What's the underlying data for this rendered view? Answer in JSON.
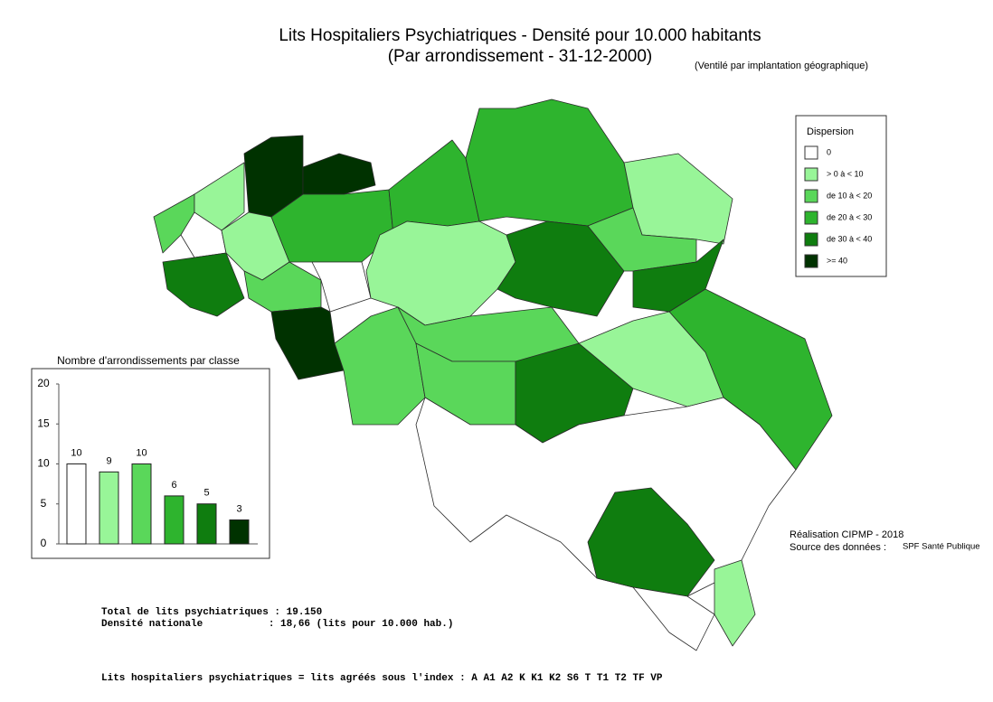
{
  "title": "Lits Hospitaliers Psychiatriques  - Densité pour 10.000 habitants",
  "subtitle": "(Par arrondissement - 31-12-2000)",
  "note": "(Ventilé par implantation géographique)",
  "legend": {
    "title": "Dispersion",
    "items": [
      {
        "label": "0",
        "color": "#ffffff"
      },
      {
        "label": "> 0 à < 10",
        "color": "#98f598"
      },
      {
        "label": "de 10 à < 20",
        "color": "#5ad75a"
      },
      {
        "label": "de 20 à < 30",
        "color": "#2eb42e"
      },
      {
        "label": "de 30 à < 40",
        "color": "#0f7d0f"
      },
      {
        "label": ">= 40",
        "color": "#003200"
      }
    ]
  },
  "credits": {
    "made_by": "Réalisation CIPMP - 2018",
    "source_label": "Source des données :",
    "source": "SPF Santé Publique"
  },
  "totals": [
    "Total de lits psychiatriques : 19.150",
    "Densité nationale           : 18,66 (lits pour 10.000 hab.)"
  ],
  "footer": "Lits hospitaliers psychiatriques = lits agréés sous l'index : A A1 A2 K K1 K2 S6 T T1 T2 TF VP",
  "chart_data": {
    "type": "bar",
    "title": "Nombre d'arrondissements par classe",
    "categories": [
      null,
      null,
      null,
      null,
      null,
      null
    ],
    "values": [
      10,
      9,
      10,
      6,
      5,
      3
    ],
    "colors": [
      "#ffffff",
      "#98f598",
      "#5ad75a",
      "#2eb42e",
      "#0f7d0f",
      "#003200"
    ],
    "ylim": [
      0,
      20
    ],
    "yticks": [
      0,
      5,
      10,
      15,
      20
    ]
  }
}
